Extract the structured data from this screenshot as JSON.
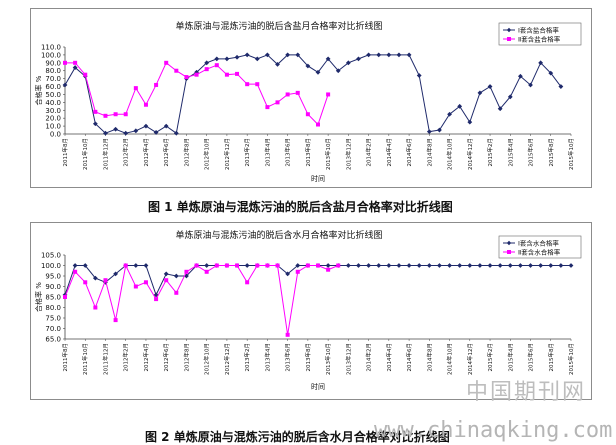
{
  "chart_data": [
    {
      "type": "line",
      "title": "单炼原油与混炼污油的脱后含盐月合格率对比折线图",
      "xlabel": "时间",
      "ylabel": "合格率 %",
      "ylim": [
        0,
        110
      ],
      "yticks": [
        "0.0",
        "10.0",
        "20.0",
        "30.0",
        "40.0",
        "50.0",
        "60.0",
        "70.0",
        "80.0",
        "90.0",
        "100.0",
        "110.0"
      ],
      "legend_position": "top-right",
      "x": [
        "2011年8月",
        "2011年9月",
        "2011年10月",
        "2011年11月",
        "2011年12月",
        "2012年1月",
        "2012年2月",
        "2012年3月",
        "2012年4月",
        "2012年5月",
        "2012年6月",
        "2012年7月",
        "2012年8月",
        "2012年9月",
        "2012年10月",
        "2012年11月",
        "2012年12月",
        "2013年1月",
        "2013年2月",
        "2013年3月",
        "2013年4月",
        "2013年5月",
        "2013年6月",
        "2013年7月",
        "2013年8月",
        "2013年9月",
        "2013年10月",
        "2013年11月",
        "2013年12月",
        "2014年1月",
        "2014年2月",
        "2014年3月",
        "2014年4月",
        "2014年5月",
        "2014年6月",
        "2014年7月",
        "2014年8月",
        "2014年9月",
        "2014年10月",
        "2014年11月",
        "2014年12月",
        "2015年1月",
        "2015年2月",
        "2015年3月",
        "2015年4月",
        "2015年5月",
        "2015年6月",
        "2015年7月",
        "2015年8月",
        "2015年9月",
        "2015年10月"
      ],
      "xticks": [
        "2011年8月",
        "2011年10月",
        "2011年12月",
        "2012年2月",
        "2012年4月",
        "2012年6月",
        "2012年8月",
        "2012年10月",
        "2012年12月",
        "2013年2月",
        "2013年4月",
        "2013年6月",
        "2013年8月",
        "2013年10月",
        "2013年12月",
        "2014年2月",
        "2014年4月",
        "2014年6月",
        "2014年8月",
        "2014年10月",
        "2014年12月",
        "2015年2月",
        "2015年4月",
        "2015年6月",
        "2015年8月",
        "2015年10月"
      ],
      "series": [
        {
          "name": "Ⅰ套含盐合格率",
          "color": "#1f2a6b",
          "marker": "diamond",
          "values": [
            62,
            84,
            73,
            13,
            1,
            6,
            1,
            4,
            10,
            2,
            10,
            1,
            70,
            78,
            90,
            95,
            95,
            97,
            100,
            95,
            100,
            88,
            100,
            100,
            86,
            78,
            95,
            80,
            90,
            95,
            100,
            100,
            100,
            100,
            100,
            74,
            3,
            5,
            25,
            35,
            15,
            52,
            60,
            32,
            47,
            73,
            62,
            90,
            77,
            60,
            null
          ]
        },
        {
          "name": "Ⅱ套含盐合格率",
          "color": "#ff00ff",
          "marker": "square",
          "values": [
            90,
            90,
            75,
            28,
            23,
            25,
            25,
            58,
            37,
            62,
            90,
            80,
            72,
            75,
            82,
            87,
            75,
            76,
            63,
            63,
            34,
            40,
            50,
            52,
            25,
            12,
            50,
            null,
            null,
            null,
            null,
            null,
            null,
            null,
            null,
            null,
            null,
            null,
            null,
            null,
            null,
            null,
            null,
            null,
            null,
            null,
            null,
            null,
            null,
            null,
            null
          ]
        }
      ]
    },
    {
      "type": "line",
      "title": "单炼原油与混炼污油的脱后含水月合格率对比折线图",
      "xlabel": "时间",
      "ylabel": "合格率 %",
      "ylim": [
        65,
        105
      ],
      "yticks": [
        "65.0",
        "70.0",
        "75.0",
        "80.0",
        "85.0",
        "90.0",
        "95.0",
        "100.0",
        "105.0"
      ],
      "legend_position": "top-right",
      "x": [
        "2011年8月",
        "2011年9月",
        "2011年10月",
        "2011年11月",
        "2011年12月",
        "2012年1月",
        "2012年2月",
        "2012年3月",
        "2012年4月",
        "2012年5月",
        "2012年6月",
        "2012年7月",
        "2012年8月",
        "2012年9月",
        "2012年10月",
        "2012年11月",
        "2012年12月",
        "2013年1月",
        "2013年2月",
        "2013年3月",
        "2013年4月",
        "2013年5月",
        "2013年6月",
        "2013年7月",
        "2013年8月",
        "2013年9月",
        "2013年10月",
        "2013年11月",
        "2013年12月",
        "2014年1月",
        "2014年2月",
        "2014年3月",
        "2014年4月",
        "2014年5月",
        "2014年6月",
        "2014年7月",
        "2014年8月",
        "2014年9月",
        "2014年10月",
        "2014年11月",
        "2014年12月",
        "2015年1月",
        "2015年2月",
        "2015年3月",
        "2015年4月",
        "2015年5月",
        "2015年6月",
        "2015年7月",
        "2015年8月",
        "2015年9月",
        "2015年10月"
      ],
      "xticks": [
        "2011年8月",
        "2011年10月",
        "2011年12月",
        "2012年2月",
        "2012年4月",
        "2012年6月",
        "2012年8月",
        "2012年10月",
        "2012年12月",
        "2013年2月",
        "2013年4月",
        "2013年6月",
        "2013年8月",
        "2013年10月",
        "2013年12月",
        "2014年2月",
        "2014年4月",
        "2014年6月",
        "2014年8月",
        "2014年10月",
        "2014年12月",
        "2015年2月",
        "2015年4月",
        "2015年6月",
        "2015年8月",
        "2015年10月"
      ],
      "series": [
        {
          "name": "Ⅰ套含水合格率",
          "color": "#1f2a6b",
          "marker": "diamond",
          "values": [
            86,
            100,
            100,
            94,
            92,
            96,
            100,
            100,
            100,
            86,
            96,
            95,
            95,
            100,
            100,
            100,
            100,
            100,
            100,
            100,
            100,
            100,
            96,
            100,
            100,
            100,
            100,
            100,
            100,
            100,
            100,
            100,
            100,
            100,
            100,
            100,
            100,
            100,
            100,
            100,
            100,
            100,
            100,
            100,
            100,
            100,
            100,
            100,
            100,
            100,
            100
          ]
        },
        {
          "name": "Ⅱ套含水合格率",
          "color": "#ff00ff",
          "marker": "square",
          "values": [
            85,
            97,
            92,
            80,
            93,
            74,
            100,
            90,
            92,
            84,
            93,
            87,
            97,
            100,
            97,
            100,
            100,
            100,
            92,
            100,
            100,
            100,
            67,
            97,
            100,
            100,
            98,
            100,
            null,
            null,
            null,
            null,
            null,
            null,
            null,
            null,
            null,
            null,
            null,
            null,
            null,
            null,
            null,
            null,
            null,
            null,
            null,
            null,
            null,
            null,
            null
          ]
        }
      ]
    }
  ],
  "captions": {
    "fig1": "图 1 单炼原油与混炼污油的脱后含盐月合格率对比折线图",
    "fig2": "图 2 单炼原油与混炼污油的脱后含水月合格率对比折线图"
  },
  "watermark": {
    "cn": "中国期刊网",
    "url": "www.chinaqking.com"
  }
}
